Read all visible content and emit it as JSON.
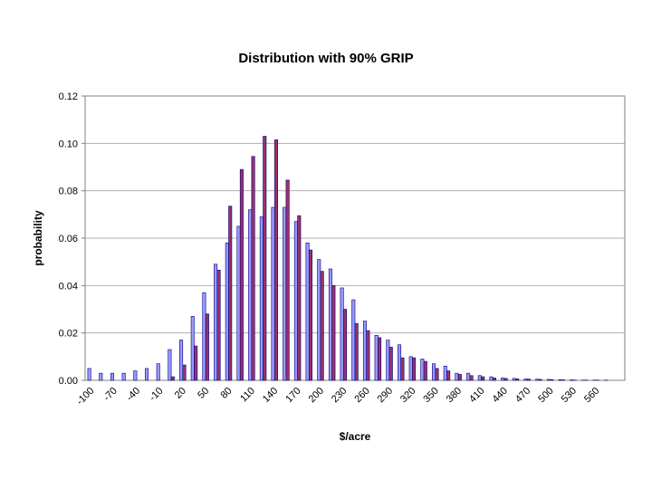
{
  "chart_data": {
    "type": "bar",
    "title": "Distribution with 90% GRIP",
    "xlabel": "$/acre",
    "ylabel": "probability",
    "ylim": [
      0,
      0.12
    ],
    "yticks": [
      "0.00",
      "0.02",
      "0.04",
      "0.06",
      "0.08",
      "0.10",
      "0.12"
    ],
    "grid": true,
    "legend": "none",
    "categories": [
      "-100",
      "-85",
      "-70",
      "-55",
      "-40",
      "-25",
      "-10",
      "5",
      "20",
      "35",
      "50",
      "65",
      "80",
      "95",
      "110",
      "125",
      "140",
      "155",
      "170",
      "185",
      "200",
      "215",
      "230",
      "245",
      "260",
      "275",
      "290",
      "305",
      "320",
      "335",
      "350",
      "365",
      "380",
      "395",
      "410",
      "425",
      "440",
      "455",
      "470",
      "485",
      "500",
      "515",
      "530",
      "545",
      "560",
      "575",
      "590"
    ],
    "xtick_labels": [
      "-100",
      "-70",
      "-40",
      "-10",
      "20",
      "50",
      "80",
      "110",
      "140",
      "170",
      "200",
      "230",
      "260",
      "290",
      "320",
      "350",
      "380",
      "410",
      "440",
      "470",
      "500",
      "530",
      "560"
    ],
    "series": [
      {
        "color": "#9999ff",
        "values": [
          0.005,
          0.003,
          0.003,
          0.003,
          0.004,
          0.005,
          0.007,
          0.013,
          0.017,
          0.027,
          0.037,
          0.049,
          0.058,
          0.065,
          0.072,
          0.069,
          0.073,
          0.073,
          0.067,
          0.058,
          0.051,
          0.047,
          0.039,
          0.034,
          0.025,
          0.019,
          0.017,
          0.015,
          0.01,
          0.009,
          0.007,
          0.006,
          0.003,
          0.003,
          0.002,
          0.0015,
          0.001,
          0.0008,
          0.0006,
          0.0005,
          0.0004,
          0.0003,
          0.0002,
          0.0001,
          0.0001,
          0.0001,
          0.0
        ]
      },
      {
        "color": "#993366",
        "values": [
          0.0,
          0.0,
          0.0,
          0.0,
          0.0,
          0.0,
          0.0,
          0.0015,
          0.0065,
          0.0145,
          0.028,
          0.0465,
          0.0735,
          0.089,
          0.0945,
          0.103,
          0.1015,
          0.0845,
          0.0695,
          0.055,
          0.046,
          0.04,
          0.03,
          0.024,
          0.021,
          0.018,
          0.014,
          0.0095,
          0.0095,
          0.008,
          0.005,
          0.004,
          0.0025,
          0.002,
          0.0015,
          0.001,
          0.0008,
          0.0006,
          0.0005,
          0.0004,
          0.0003,
          0.0002,
          0.0001,
          0.0001,
          0.0001,
          0.0,
          0.0
        ]
      }
    ]
  }
}
